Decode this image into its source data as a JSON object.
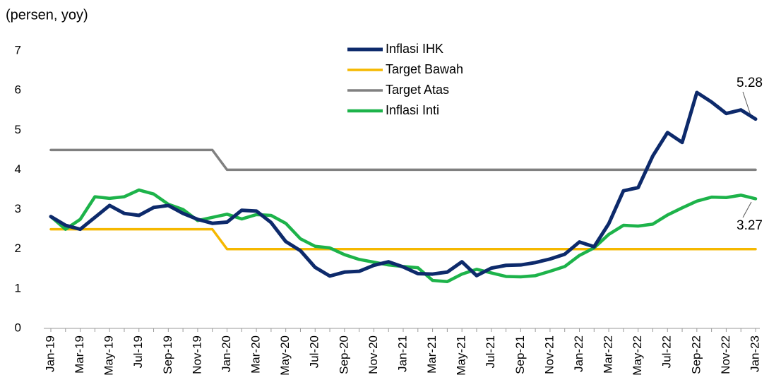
{
  "chart_data": {
    "type": "line",
    "ylabel": "(persen, yoy)",
    "categories": [
      "Jan-19",
      null,
      "Mar-19",
      null,
      "May-19",
      null,
      "Jul-19",
      null,
      "Sep-19",
      null,
      "Nov-19",
      null,
      "Jan-20",
      null,
      "Mar-20",
      null,
      "May-20",
      null,
      "Jul-20",
      null,
      "Sep-20",
      null,
      "Nov-20",
      null,
      "Jan-21",
      null,
      "Mar-21",
      null,
      "May-21",
      null,
      "Jul-21",
      null,
      "Sep-21",
      null,
      "Nov-21",
      null,
      "Jan-22",
      null,
      "Mar-22",
      null,
      "May-22",
      null,
      "Jul-22",
      null,
      "Sep-22",
      null,
      "Nov-22",
      null,
      "Jan-23"
    ],
    "series": [
      {
        "name": "Inflasi IHK",
        "color": "#0d2a6b",
        "values": [
          2.82,
          2.6,
          2.5,
          2.8,
          3.1,
          2.9,
          2.85,
          3.05,
          3.1,
          2.9,
          2.75,
          2.65,
          2.68,
          2.98,
          2.96,
          2.67,
          2.19,
          1.96,
          1.54,
          1.32,
          1.42,
          1.44,
          1.59,
          1.68,
          1.55,
          1.38,
          1.37,
          1.42,
          1.68,
          1.33,
          1.52,
          1.59,
          1.6,
          1.66,
          1.75,
          1.87,
          2.18,
          2.06,
          2.64,
          3.47,
          3.55,
          4.35,
          4.94,
          4.69,
          5.95,
          5.71,
          5.42,
          5.51,
          5.28
        ]
      },
      {
        "name": "Target Bawah",
        "color": "#f5b800",
        "values": [
          2.5,
          2.5,
          2.5,
          2.5,
          2.5,
          2.5,
          2.5,
          2.5,
          2.5,
          2.5,
          2.5,
          2.5,
          2,
          2,
          2,
          2,
          2,
          2,
          2,
          2,
          2,
          2,
          2,
          2,
          2,
          2,
          2,
          2,
          2,
          2,
          2,
          2,
          2,
          2,
          2,
          2,
          2,
          2,
          2,
          2,
          2,
          2,
          2,
          2,
          2,
          2,
          2,
          2,
          2
        ]
      },
      {
        "name": "Target Atas",
        "color": "#808080",
        "values": [
          4.5,
          4.5,
          4.5,
          4.5,
          4.5,
          4.5,
          4.5,
          4.5,
          4.5,
          4.5,
          4.5,
          4.5,
          4,
          4,
          4,
          4,
          4,
          4,
          4,
          4,
          4,
          4,
          4,
          4,
          4,
          4,
          4,
          4,
          4,
          4,
          4,
          4,
          4,
          4,
          4,
          4,
          4,
          4,
          4,
          4,
          4,
          4,
          4,
          4,
          4,
          4,
          4,
          4,
          4
        ]
      },
      {
        "name": "Inflasi Inti",
        "color": "#1db34a",
        "values": [
          2.82,
          2.5,
          2.75,
          3.32,
          3.28,
          3.32,
          3.49,
          3.39,
          3.13,
          3.0,
          2.72,
          2.8,
          2.88,
          2.76,
          2.87,
          2.85,
          2.65,
          2.26,
          2.07,
          2.03,
          1.86,
          1.74,
          1.67,
          1.6,
          1.56,
          1.53,
          1.21,
          1.18,
          1.37,
          1.49,
          1.4,
          1.31,
          1.3,
          1.33,
          1.44,
          1.56,
          1.84,
          2.03,
          2.37,
          2.6,
          2.58,
          2.63,
          2.86,
          3.04,
          3.21,
          3.31,
          3.3,
          3.36,
          3.27
        ]
      }
    ],
    "annotations": [
      "5.28",
      "3.27"
    ],
    "ylim": [
      0,
      7
    ],
    "yticks": [
      0,
      1,
      2,
      3,
      4,
      5,
      6,
      7
    ],
    "grid": false,
    "legend": "top"
  }
}
